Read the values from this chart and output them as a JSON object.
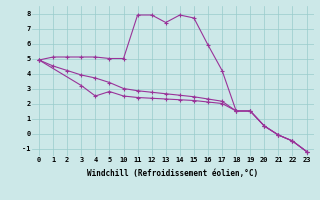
{
  "xlabel": "Windchill (Refroidissement éolien,°C)",
  "background_color": "#cce8e8",
  "line_color": "#993399",
  "grid_color": "#99cccc",
  "xlim": [
    -0.5,
    23.5
  ],
  "ylim": [
    -1.5,
    8.5
  ],
  "yticks": [
    -1,
    0,
    1,
    2,
    3,
    4,
    5,
    6,
    7,
    8
  ],
  "xticks": [
    0,
    1,
    2,
    3,
    4,
    5,
    10,
    11,
    12,
    13,
    14,
    15,
    16,
    17,
    18,
    19,
    20,
    21,
    22,
    23
  ],
  "line1_x": [
    0,
    1,
    2,
    3,
    4,
    5,
    10,
    11,
    12,
    13,
    14,
    15,
    16,
    17,
    18,
    19,
    20,
    21,
    22,
    23
  ],
  "line1_y": [
    4.9,
    5.1,
    5.1,
    5.1,
    5.1,
    5.0,
    5.0,
    7.9,
    7.9,
    7.4,
    7.9,
    7.7,
    5.9,
    4.2,
    1.5,
    1.5,
    0.5,
    -0.1,
    -0.5,
    -1.2
  ],
  "line2_x": [
    0,
    1,
    2,
    3,
    4,
    5,
    10,
    11,
    12,
    13,
    14,
    15,
    16,
    17,
    18,
    19,
    20,
    21,
    22,
    23
  ],
  "line2_y": [
    4.9,
    4.5,
    4.2,
    3.9,
    3.7,
    3.4,
    3.0,
    2.85,
    2.75,
    2.65,
    2.55,
    2.45,
    2.3,
    2.15,
    1.5,
    1.5,
    0.5,
    -0.1,
    -0.5,
    -1.2
  ],
  "line3_x": [
    0,
    3,
    4,
    5,
    10,
    11,
    12,
    13,
    14,
    15,
    16,
    17,
    18,
    19,
    20,
    21,
    22,
    23
  ],
  "line3_y": [
    4.9,
    3.2,
    2.5,
    2.8,
    2.5,
    2.4,
    2.35,
    2.3,
    2.25,
    2.2,
    2.1,
    2.0,
    1.5,
    1.5,
    0.5,
    -0.1,
    -0.5,
    -1.2
  ],
  "tick_fontsize": 5.0,
  "xlabel_fontsize": 5.5,
  "linewidth": 0.8,
  "markersize": 2.5
}
